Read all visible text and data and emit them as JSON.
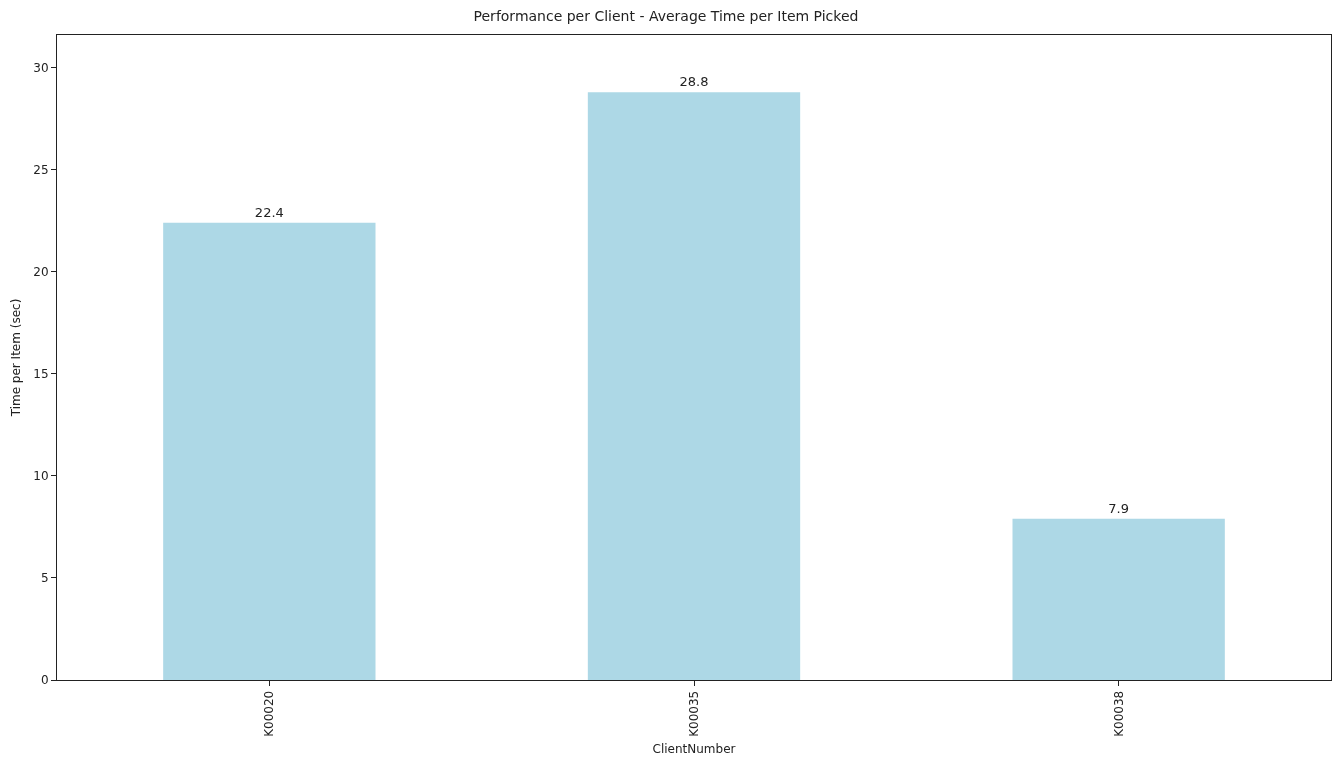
{
  "chart_data": {
    "type": "bar",
    "title": "Performance per Client - Average Time per Item Picked",
    "xlabel": "ClientNumber",
    "ylabel": "Time per Item (sec)",
    "categories": [
      "K00020",
      "K00035",
      "K00038"
    ],
    "values": [
      22.4,
      28.8,
      7.9
    ],
    "color": "#add8e6",
    "data_labels": true,
    "ylim": [
      0,
      31.6
    ],
    "yticks": [
      0,
      5,
      10,
      15,
      20,
      25,
      30
    ],
    "grid": false
  }
}
